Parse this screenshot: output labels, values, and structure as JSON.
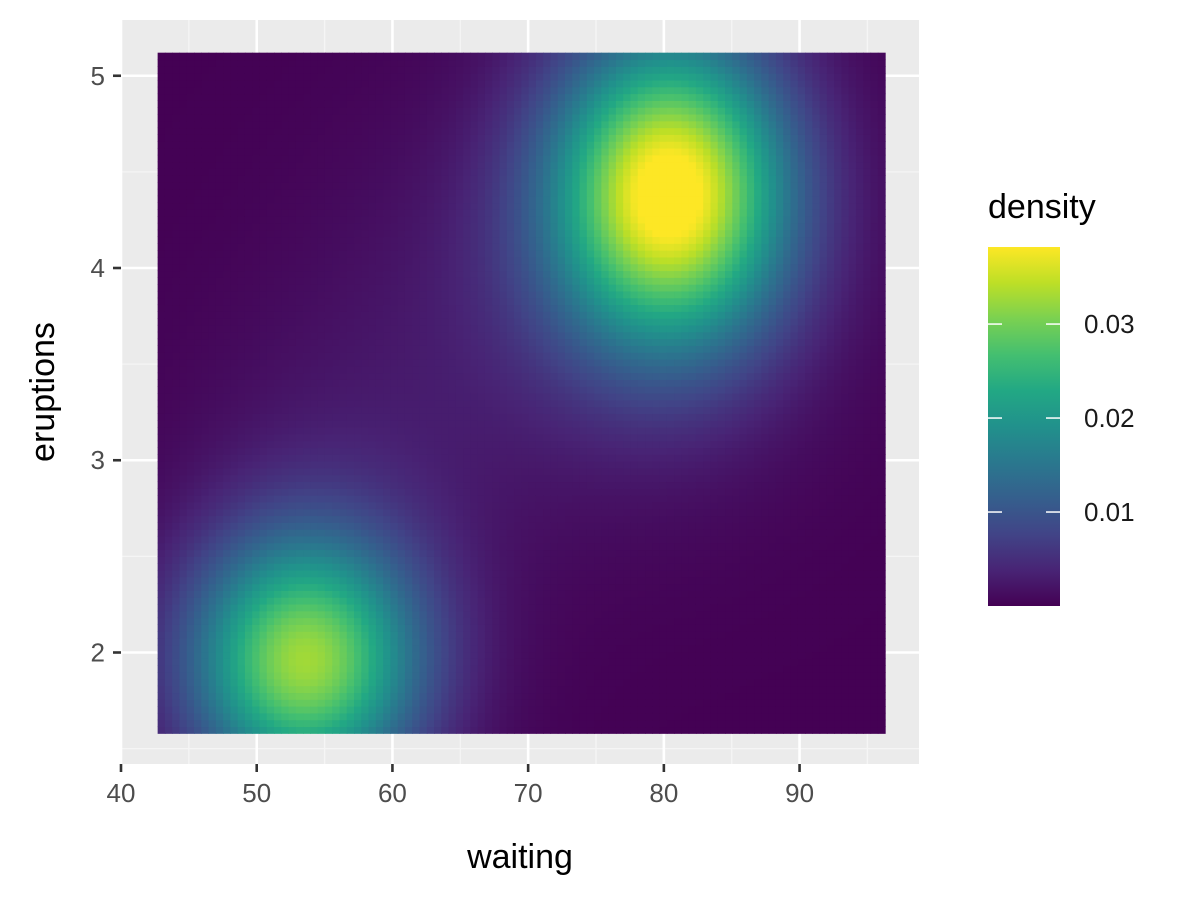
{
  "chart_data": {
    "type": "heatmap",
    "title": "",
    "xlabel": "waiting",
    "ylabel": "eruptions",
    "xlim": [
      40,
      98.8
    ],
    "ylim": [
      1.42,
      5.29
    ],
    "x_ticks": [
      40,
      50,
      60,
      70,
      80,
      90
    ],
    "y_ticks": [
      2,
      3,
      4,
      5
    ],
    "x_tick_labels": [
      "40",
      "50",
      "60",
      "70",
      "80",
      "90"
    ],
    "y_tick_labels": [
      "2",
      "3",
      "4",
      "5"
    ],
    "grid": true,
    "data_extent": {
      "x": [
        42.7,
        96.3
      ],
      "y": [
        1.58,
        5.12
      ]
    },
    "value_range": [
      0,
      0.0382
    ],
    "modes": [
      {
        "x": 80.5,
        "y": 4.4,
        "density": 0.0382
      },
      {
        "x": 53.5,
        "y": 1.95,
        "density": 0.0305
      }
    ],
    "legend": {
      "title": "density",
      "position": "right",
      "breaks": [
        0.01,
        0.02,
        0.03
      ],
      "labels": [
        "0.01",
        "0.02",
        "0.03"
      ]
    },
    "colorscale": "viridis",
    "colors": {
      "panel_background": "#ebebeb",
      "grid_major": "#ffffff",
      "grid_minor": "#f5f5f5",
      "low": "#440154",
      "high": "#fde725"
    }
  }
}
